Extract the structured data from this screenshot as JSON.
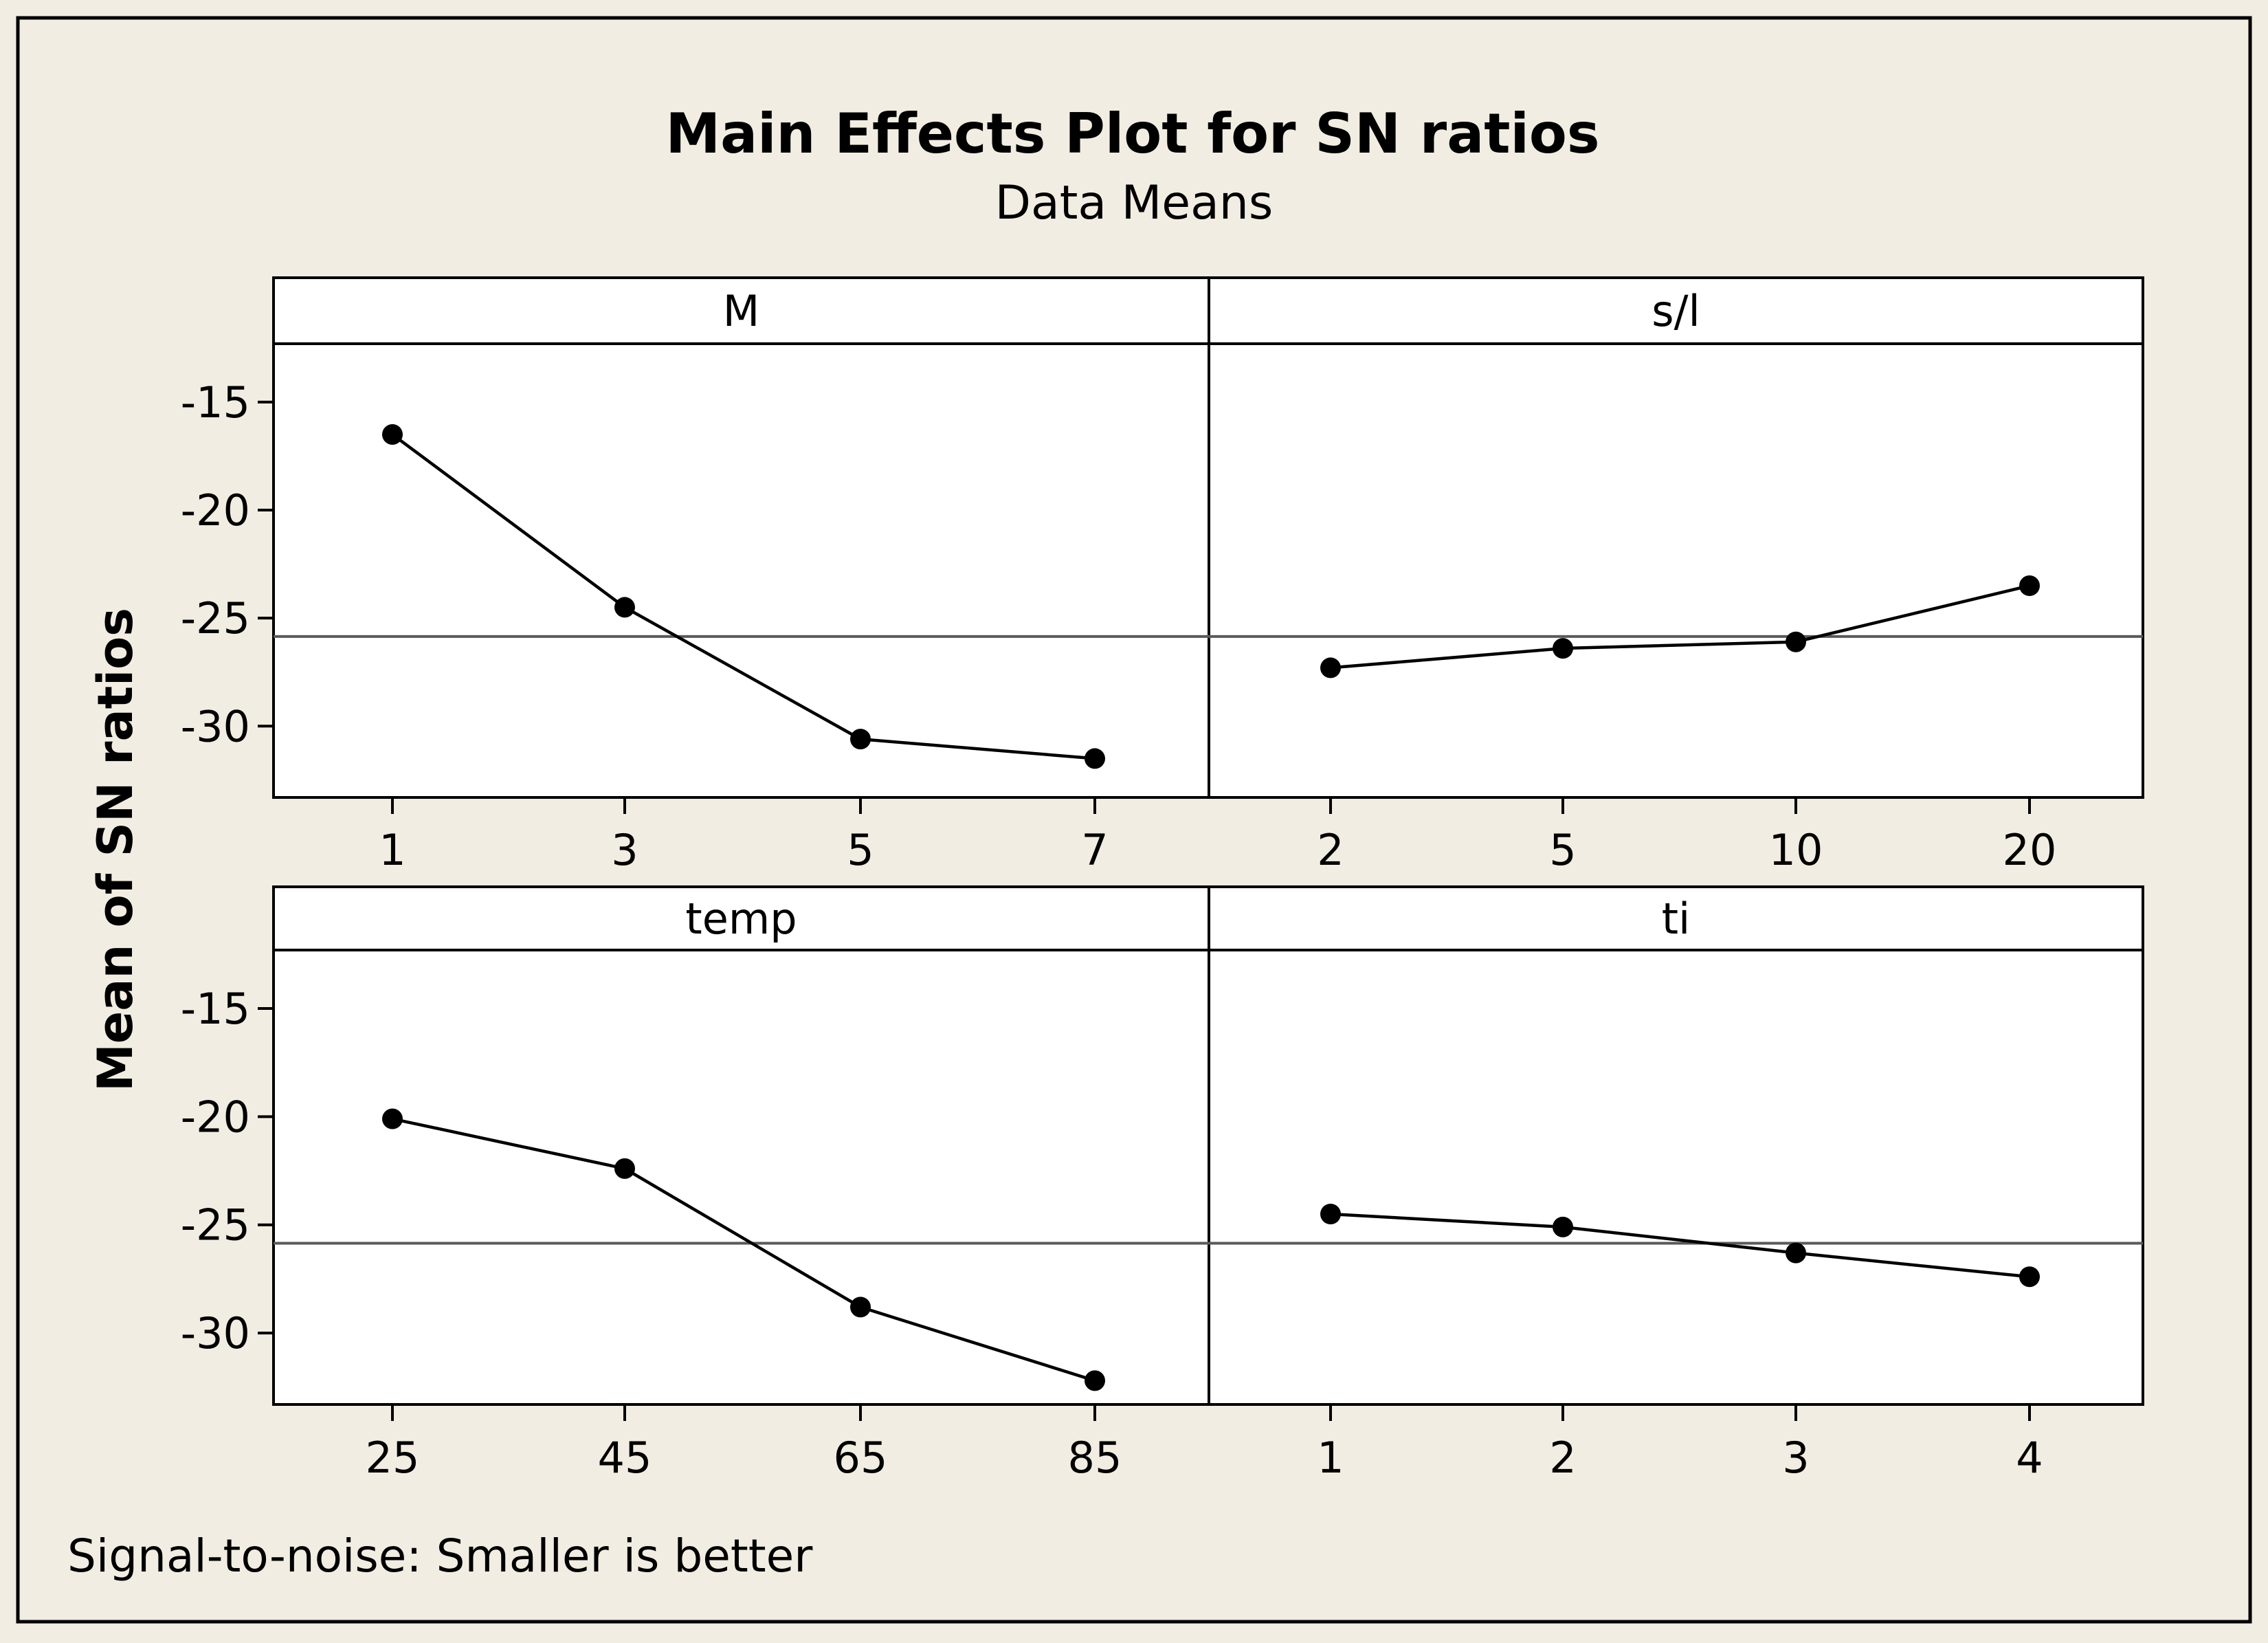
{
  "chart_data": {
    "type": "line",
    "title": "Main Effects Plot for SN ratios",
    "subtitle": "Data Means",
    "ylabel": "Mean of SN ratios",
    "footnote": "Signal-to-noise: Smaller is better",
    "ylim": [
      -33.3,
      -12.3
    ],
    "yticks": [
      -15,
      -20,
      -25,
      -30
    ],
    "ytick_labels": [
      "-15",
      "-20",
      "-25",
      "-30"
    ],
    "reference_line": -25.85,
    "grid": false,
    "panels": [
      {
        "factor": "M",
        "categories": [
          "1",
          "3",
          "5",
          "7"
        ],
        "values": [
          -16.5,
          -24.5,
          -30.6,
          -31.5
        ]
      },
      {
        "factor": "s/l",
        "categories": [
          "2",
          "5",
          "10",
          "20"
        ],
        "values": [
          -27.3,
          -26.4,
          -26.1,
          -23.5
        ]
      },
      {
        "factor": "temp",
        "categories": [
          "25",
          "45",
          "65",
          "85"
        ],
        "values": [
          -20.1,
          -22.4,
          -28.8,
          -32.2
        ]
      },
      {
        "factor": "ti",
        "categories": [
          "1",
          "2",
          "3",
          "4"
        ],
        "values": [
          -24.5,
          -25.1,
          -26.3,
          -27.4
        ]
      }
    ]
  }
}
